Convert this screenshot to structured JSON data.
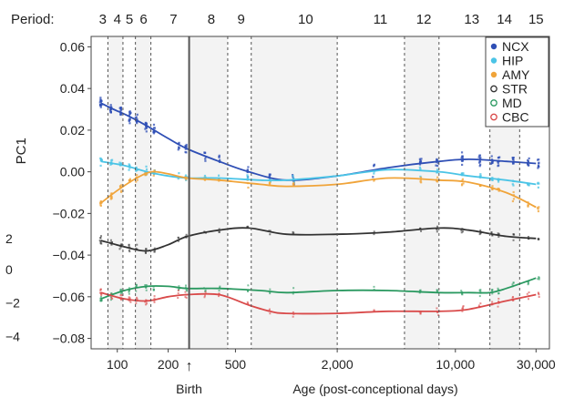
{
  "chart_data": {
    "type": "scatter",
    "title": "",
    "xlabel": "Age (post-conceptional days)",
    "ylabel": "PC1",
    "x_scale": "log",
    "xlim": [
      70,
      36000
    ],
    "ylim": [
      -0.085,
      0.065
    ],
    "grid": false,
    "legend_position": "top-right",
    "period_label": "Period:",
    "periods": [
      {
        "label": "3",
        "x": 82
      },
      {
        "label": "4",
        "x": 100
      },
      {
        "label": "5",
        "x": 118
      },
      {
        "label": "6",
        "x": 143
      },
      {
        "label": "7",
        "x": 215
      },
      {
        "label": "8",
        "x": 360
      },
      {
        "label": "9",
        "x": 540
      },
      {
        "label": "10",
        "x": 1300
      },
      {
        "label": "11",
        "x": 3600
      },
      {
        "label": "12",
        "x": 6500
      },
      {
        "label": "13",
        "x": 12500
      },
      {
        "label": "14",
        "x": 19500
      },
      {
        "label": "15",
        "x": 30000
      }
    ],
    "period_boundaries": [
      88,
      108,
      128,
      158,
      266,
      450,
      620,
      2000,
      5000,
      8000,
      16000,
      24000
    ],
    "birth_x": 266,
    "birth_label": "Birth",
    "birth_arrow": "↑",
    "x_ticks": [
      {
        "value": 100,
        "label": "100"
      },
      {
        "value": 200,
        "label": "200"
      },
      {
        "value": 500,
        "label": "500"
      },
      {
        "value": 2000,
        "label": "2,000"
      },
      {
        "value": 10000,
        "label": "10,000"
      },
      {
        "value": 30000,
        "label": "30,000"
      }
    ],
    "y_ticks": [
      {
        "value": 0.06,
        "label": "0.06"
      },
      {
        "value": 0.04,
        "label": "0.04"
      },
      {
        "value": 0.02,
        "label": "0.02"
      },
      {
        "value": 0.0,
        "label": "0.00"
      },
      {
        "value": -0.02,
        "label": "−0.02"
      },
      {
        "value": -0.04,
        "label": "−0.04"
      },
      {
        "value": -0.06,
        "label": "−0.06"
      },
      {
        "value": -0.08,
        "label": "−0.08"
      }
    ],
    "secondary_y_ticks": [
      {
        "label": "2",
        "at": -0.032
      },
      {
        "label": "0",
        "at": -0.047
      },
      {
        "label": "−2",
        "at": -0.063
      },
      {
        "label": "−4",
        "at": -0.079
      }
    ],
    "series": [
      {
        "name": "NCX",
        "color": "#2f4fb5",
        "marker": "filled",
        "x": [
          80,
          95,
          115,
          150,
          200,
          260,
          400,
          600,
          1000,
          2000,
          4000,
          8000,
          12000,
          20000,
          30000
        ],
        "y": [
          0.033,
          0.03,
          0.027,
          0.022,
          0.016,
          0.011,
          0.005,
          0.0,
          -0.004,
          -0.002,
          0.002,
          0.005,
          0.006,
          0.005,
          0.004
        ]
      },
      {
        "name": "HIP",
        "color": "#4bc4e6",
        "marker": "filled",
        "x": [
          80,
          110,
          150,
          200,
          260,
          400,
          700,
          1000,
          2000,
          4000,
          8000,
          12000,
          20000,
          30000
        ],
        "y": [
          0.005,
          0.003,
          0.0,
          -0.002,
          -0.003,
          -0.003,
          -0.004,
          -0.004,
          -0.002,
          0.001,
          0.0,
          -0.002,
          -0.004,
          -0.006
        ]
      },
      {
        "name": "AMY",
        "color": "#f0a43a",
        "marker": "filled",
        "x": [
          80,
          100,
          130,
          160,
          200,
          260,
          400,
          700,
          1000,
          2000,
          4000,
          8000,
          12000,
          20000,
          30000
        ],
        "y": [
          -0.015,
          -0.009,
          -0.003,
          0.0,
          -0.001,
          -0.003,
          -0.004,
          -0.006,
          -0.007,
          -0.006,
          -0.003,
          -0.004,
          -0.005,
          -0.01,
          -0.017
        ]
      },
      {
        "name": "STR",
        "color": "#333333",
        "marker": "open",
        "x": [
          80,
          110,
          150,
          200,
          260,
          400,
          600,
          1000,
          2000,
          4000,
          8000,
          12000,
          20000,
          30000
        ],
        "y": [
          -0.033,
          -0.036,
          -0.038,
          -0.035,
          -0.031,
          -0.028,
          -0.027,
          -0.03,
          -0.03,
          -0.029,
          -0.027,
          -0.028,
          -0.031,
          -0.032
        ]
      },
      {
        "name": "MD",
        "color": "#2a9960",
        "marker": "open",
        "x": [
          80,
          110,
          150,
          200,
          260,
          400,
          700,
          1000,
          2000,
          4000,
          8000,
          12000,
          16000,
          20000,
          30000
        ],
        "y": [
          -0.061,
          -0.057,
          -0.055,
          -0.055,
          -0.056,
          -0.056,
          -0.057,
          -0.058,
          -0.057,
          -0.057,
          -0.058,
          -0.058,
          -0.058,
          -0.056,
          -0.051
        ]
      },
      {
        "name": "CBC",
        "color": "#d94a4a",
        "marker": "open",
        "x": [
          80,
          110,
          150,
          200,
          260,
          400,
          600,
          800,
          1000,
          2000,
          4000,
          8000,
          12000,
          20000,
          30000
        ],
        "y": [
          -0.058,
          -0.061,
          -0.062,
          -0.06,
          -0.059,
          -0.059,
          -0.064,
          -0.067,
          -0.068,
          -0.068,
          -0.067,
          -0.067,
          -0.066,
          -0.062,
          -0.059
        ]
      }
    ]
  }
}
